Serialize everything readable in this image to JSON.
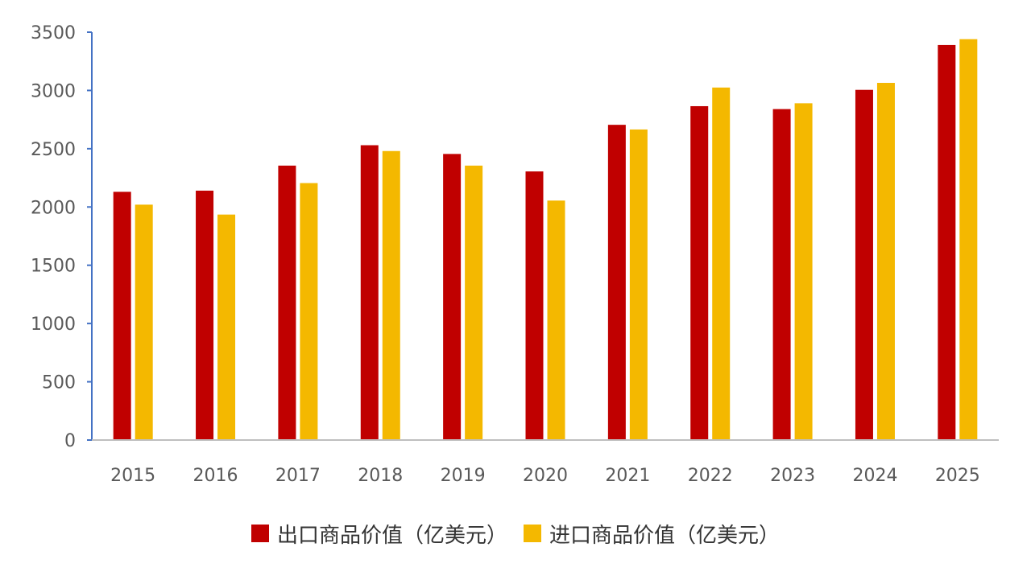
{
  "chart_data": {
    "type": "bar",
    "categories": [
      "2015",
      "2016",
      "2017",
      "2018",
      "2019",
      "2020",
      "2021",
      "2022",
      "2023",
      "2024",
      "2025"
    ],
    "series": [
      {
        "name": "出口商品价值（亿美元）",
        "color": "#c00000",
        "values": [
          2130,
          2140,
          2355,
          2530,
          2455,
          2305,
          2705,
          2865,
          2840,
          3005,
          3390
        ]
      },
      {
        "name": "进口商品价值（亿美元）",
        "color": "#f4b800",
        "values": [
          2020,
          1935,
          2205,
          2480,
          2355,
          2055,
          2665,
          3025,
          2890,
          3065,
          3440
        ]
      }
    ],
    "yticks": [
      "0",
      "500",
      "1000",
      "1500",
      "2000",
      "2500",
      "3000",
      "3500"
    ],
    "ylim": [
      0,
      3500
    ],
    "grid": false,
    "legend": "bottom",
    "axis_color": "#4472c4",
    "baseline_color": "#bfbfbf"
  }
}
